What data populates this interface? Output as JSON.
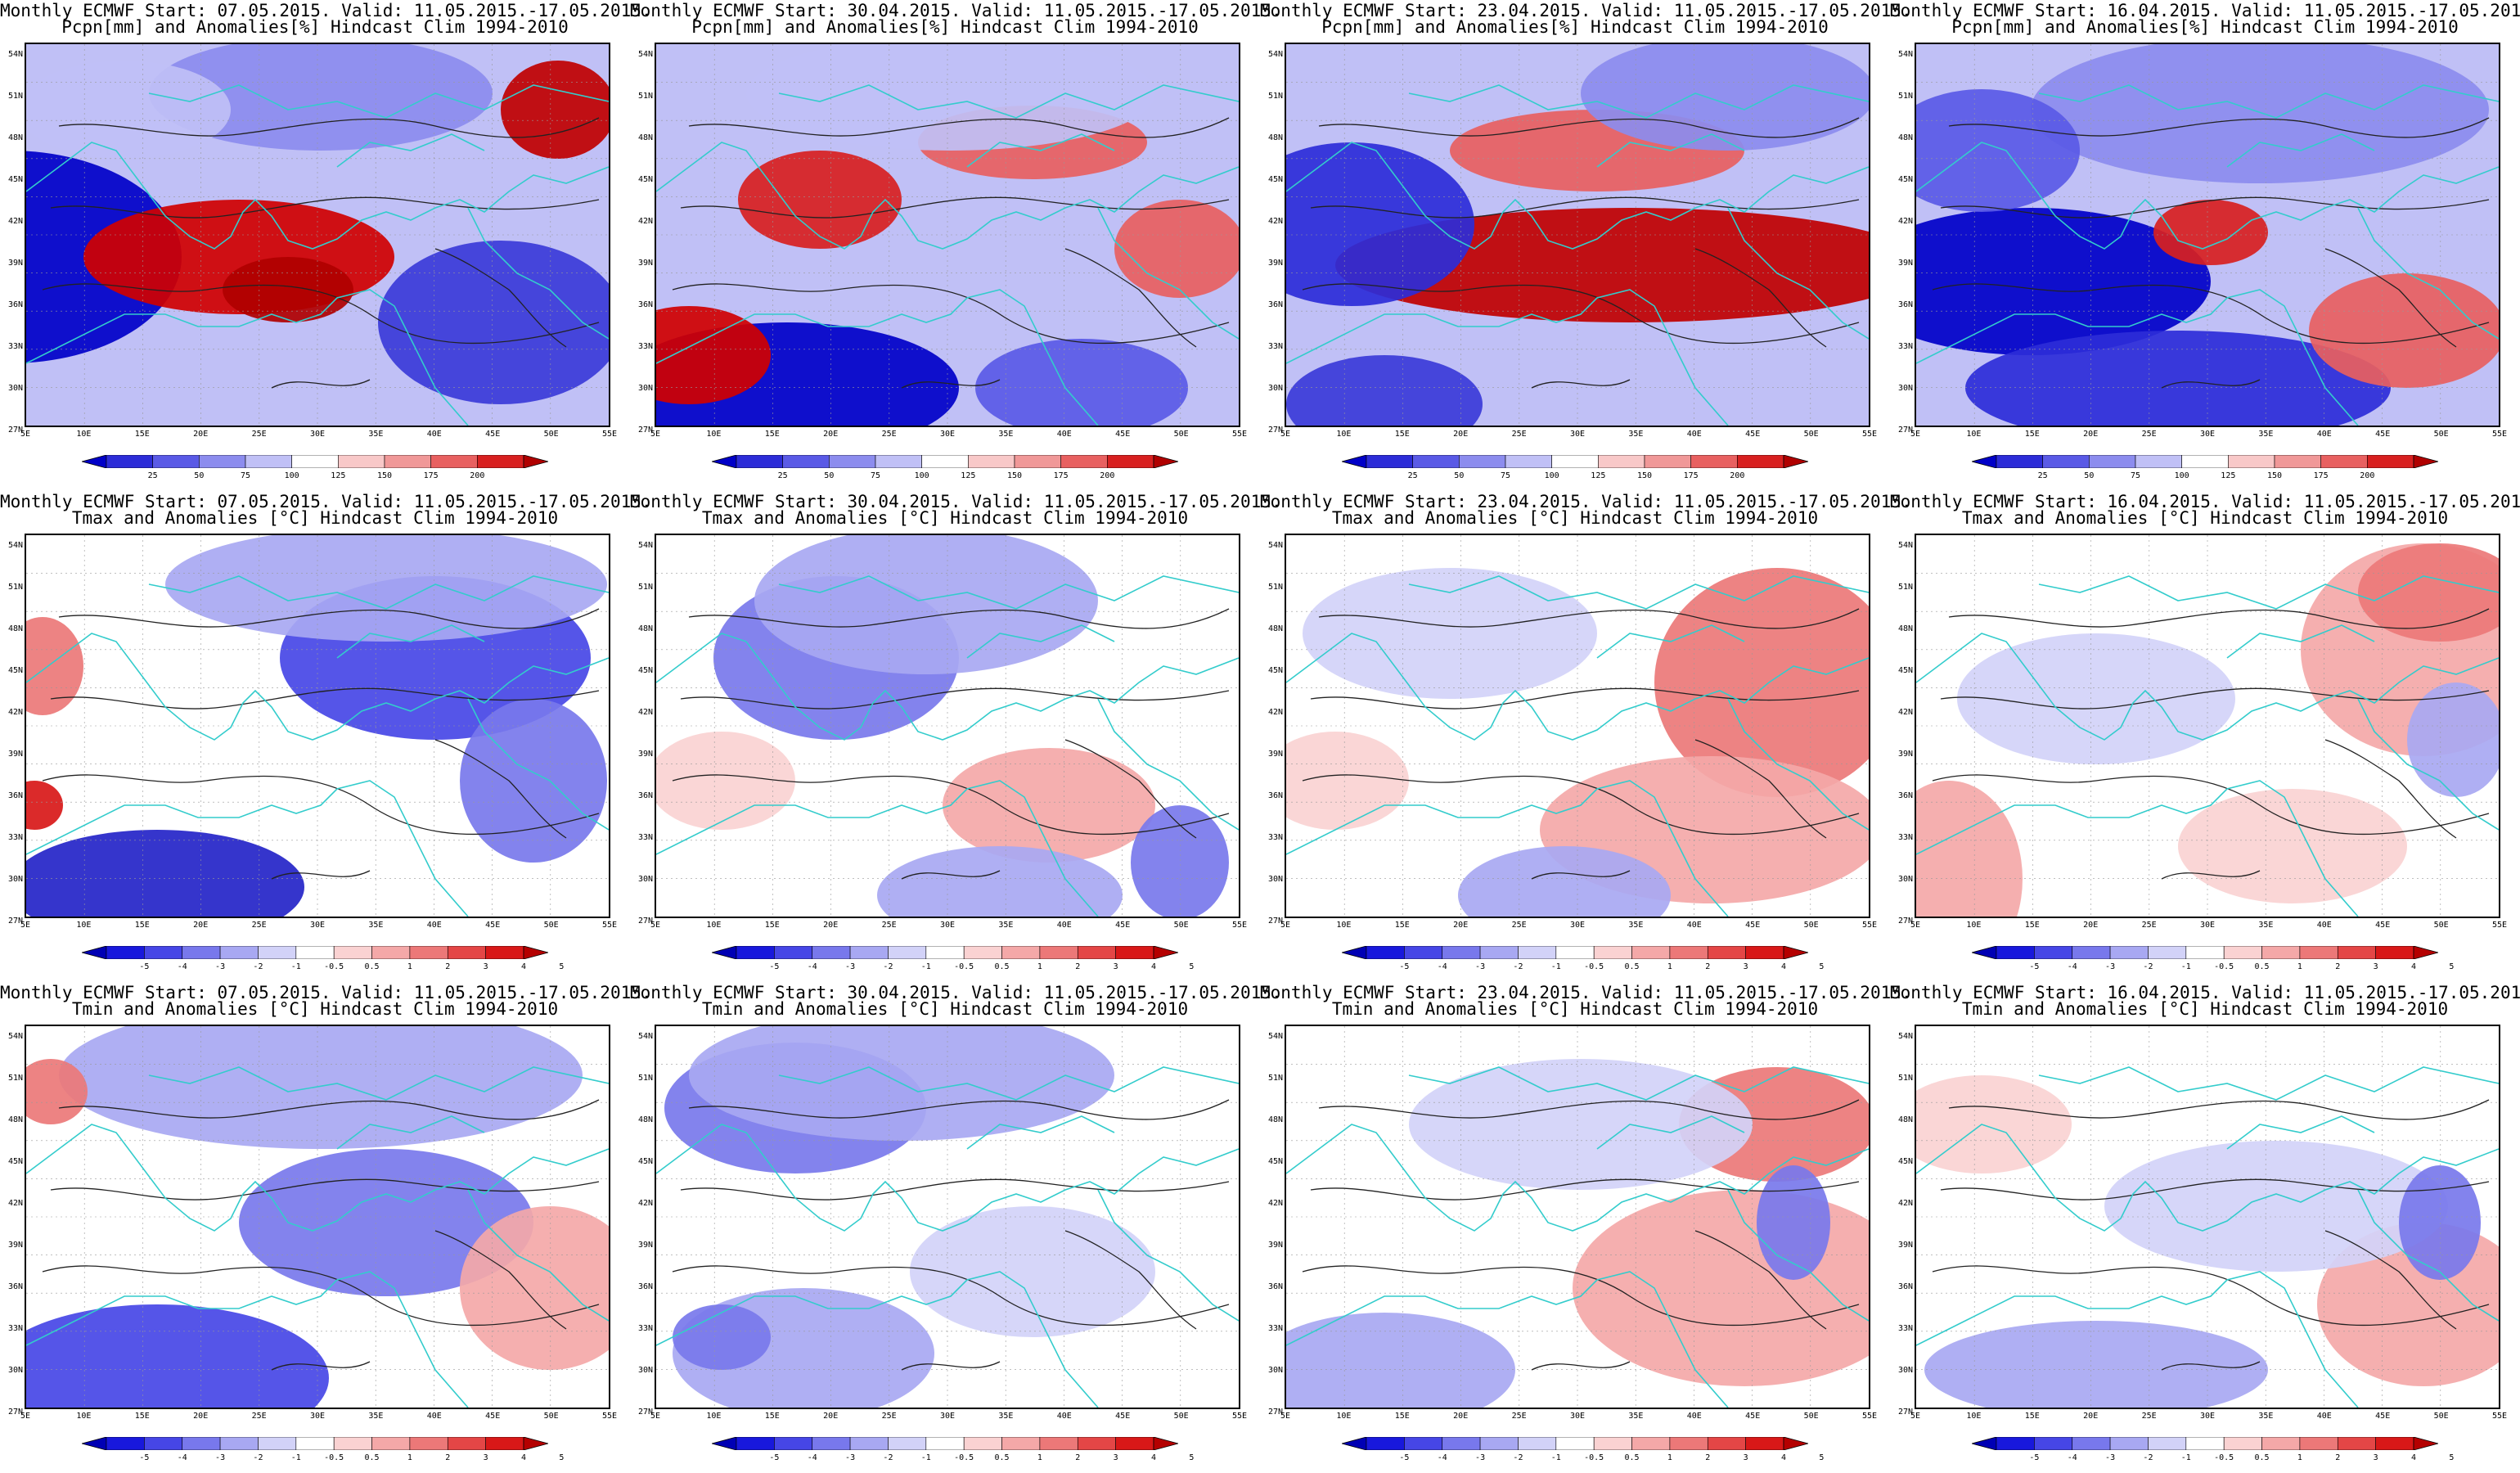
{
  "panels": [
    {
      "row": 0,
      "col": 0,
      "line1": "Monthly ECMWF Start: 07.05.2015. Valid: 11.05.2015.-17.05.2015.",
      "line2": "Pcpn[mm] and Anomalies[%] Hindcast Clim 1994-2010",
      "variable": "precip",
      "pattern": "p1"
    },
    {
      "row": 0,
      "col": 1,
      "line1": "Monthly ECMWF Start: 30.04.2015. Valid: 11.05.2015.-17.05.2015.",
      "line2": "Pcpn[mm] and Anomalies[%] Hindcast Clim 1994-2010",
      "variable": "precip",
      "pattern": "p2"
    },
    {
      "row": 0,
      "col": 2,
      "line1": "Monthly ECMWF Start: 23.04.2015. Valid: 11.05.2015.-17.05.2015.",
      "line2": "Pcpn[mm] and Anomalies[%] Hindcast Clim 1994-2010",
      "variable": "precip",
      "pattern": "p3"
    },
    {
      "row": 0,
      "col": 3,
      "line1": "Monthly ECMWF Start: 16.04.2015. Valid: 11.05.2015.-17.05.2015.",
      "line2": "Pcpn[mm] and Anomalies[%] Hindcast Clim 1994-2010",
      "variable": "precip",
      "pattern": "p4"
    },
    {
      "row": 1,
      "col": 0,
      "line1": "Monthly ECMWF Start: 07.05.2015. Valid: 11.05.2015.-17.05.2015.",
      "line2": "Tmax and Anomalies [°C] Hindcast Clim 1994-2010",
      "variable": "temp",
      "pattern": "tx1"
    },
    {
      "row": 1,
      "col": 1,
      "line1": "Monthly ECMWF Start: 30.04.2015. Valid: 11.05.2015.-17.05.2015.",
      "line2": "Tmax and Anomalies [°C] Hindcast Clim 1994-2010",
      "variable": "temp",
      "pattern": "tx2"
    },
    {
      "row": 1,
      "col": 2,
      "line1": "Monthly ECMWF Start: 23.04.2015. Valid: 11.05.2015.-17.05.2015.",
      "line2": "Tmax and Anomalies [°C] Hindcast Clim 1994-2010",
      "variable": "temp",
      "pattern": "tx3"
    },
    {
      "row": 1,
      "col": 3,
      "line1": "Monthly ECMWF Start: 16.04.2015. Valid: 11.05.2015.-17.05.2015.",
      "line2": "Tmax and Anomalies [°C] Hindcast Clim 1994-2010",
      "variable": "temp",
      "pattern": "tx4"
    },
    {
      "row": 2,
      "col": 0,
      "line1": "Monthly ECMWF Start: 07.05.2015. Valid: 11.05.2015.-17.05.2015.",
      "line2": "Tmin and Anomalies [°C] Hindcast Clim 1994-2010",
      "variable": "temp",
      "pattern": "tn1"
    },
    {
      "row": 2,
      "col": 1,
      "line1": "Monthly ECMWF Start: 30.04.2015. Valid: 11.05.2015.-17.05.2015.",
      "line2": "Tmin and Anomalies [°C] Hindcast Clim 1994-2010",
      "variable": "temp",
      "pattern": "tn2"
    },
    {
      "row": 2,
      "col": 2,
      "line1": "Monthly ECMWF Start: 23.04.2015. Valid: 11.05.2015.-17.05.2015.",
      "line2": "Tmin and Anomalies [°C] Hindcast Clim 1994-2010",
      "variable": "temp",
      "pattern": "tn3"
    },
    {
      "row": 2,
      "col": 3,
      "line1": "Monthly ECMWF Start: 16.04.2015. Valid: 11.05.2015.-17.05.2015.",
      "line2": "Tmin and Anomalies [°C] Hindcast Clim 1994-2010",
      "variable": "temp",
      "pattern": "tn4"
    }
  ],
  "axes": {
    "lat_labels": [
      "54N",
      "51N",
      "48N",
      "45N",
      "42N",
      "39N",
      "36N",
      "33N",
      "30N",
      "27N"
    ],
    "lon_labels": [
      "5E",
      "10E",
      "15E",
      "20E",
      "25E",
      "30E",
      "35E",
      "40E",
      "45E",
      "50E",
      "55E"
    ]
  },
  "colorbars": {
    "precip": {
      "labels": [
        "25",
        "50",
        "75",
        "100",
        "125",
        "150",
        "175",
        "200"
      ],
      "colors": [
        "#0000c8",
        "#2c2cd8",
        "#5a5ae6",
        "#8c8cee",
        "#c0c0f6",
        "#ffffff",
        "#f8c8c8",
        "#f09898",
        "#e86060",
        "#d82020",
        "#b00000"
      ]
    },
    "temp": {
      "labels": [
        "-5",
        "-4",
        "-3",
        "-2",
        "-1",
        "-0.5",
        "0.5",
        "1",
        "2",
        "3",
        "4",
        "5"
      ],
      "colors": [
        "#0000b4",
        "#1818dc",
        "#4646e6",
        "#7878ec",
        "#a8a8f2",
        "#d2d2f8",
        "#ffffff",
        "#fad2d2",
        "#f4a8a8",
        "#ec7878",
        "#e44646",
        "#d81818",
        "#b40000"
      ]
    }
  },
  "colors": {
    "coast": "#33cccc",
    "contour": "#222222",
    "frame": "#000000"
  }
}
